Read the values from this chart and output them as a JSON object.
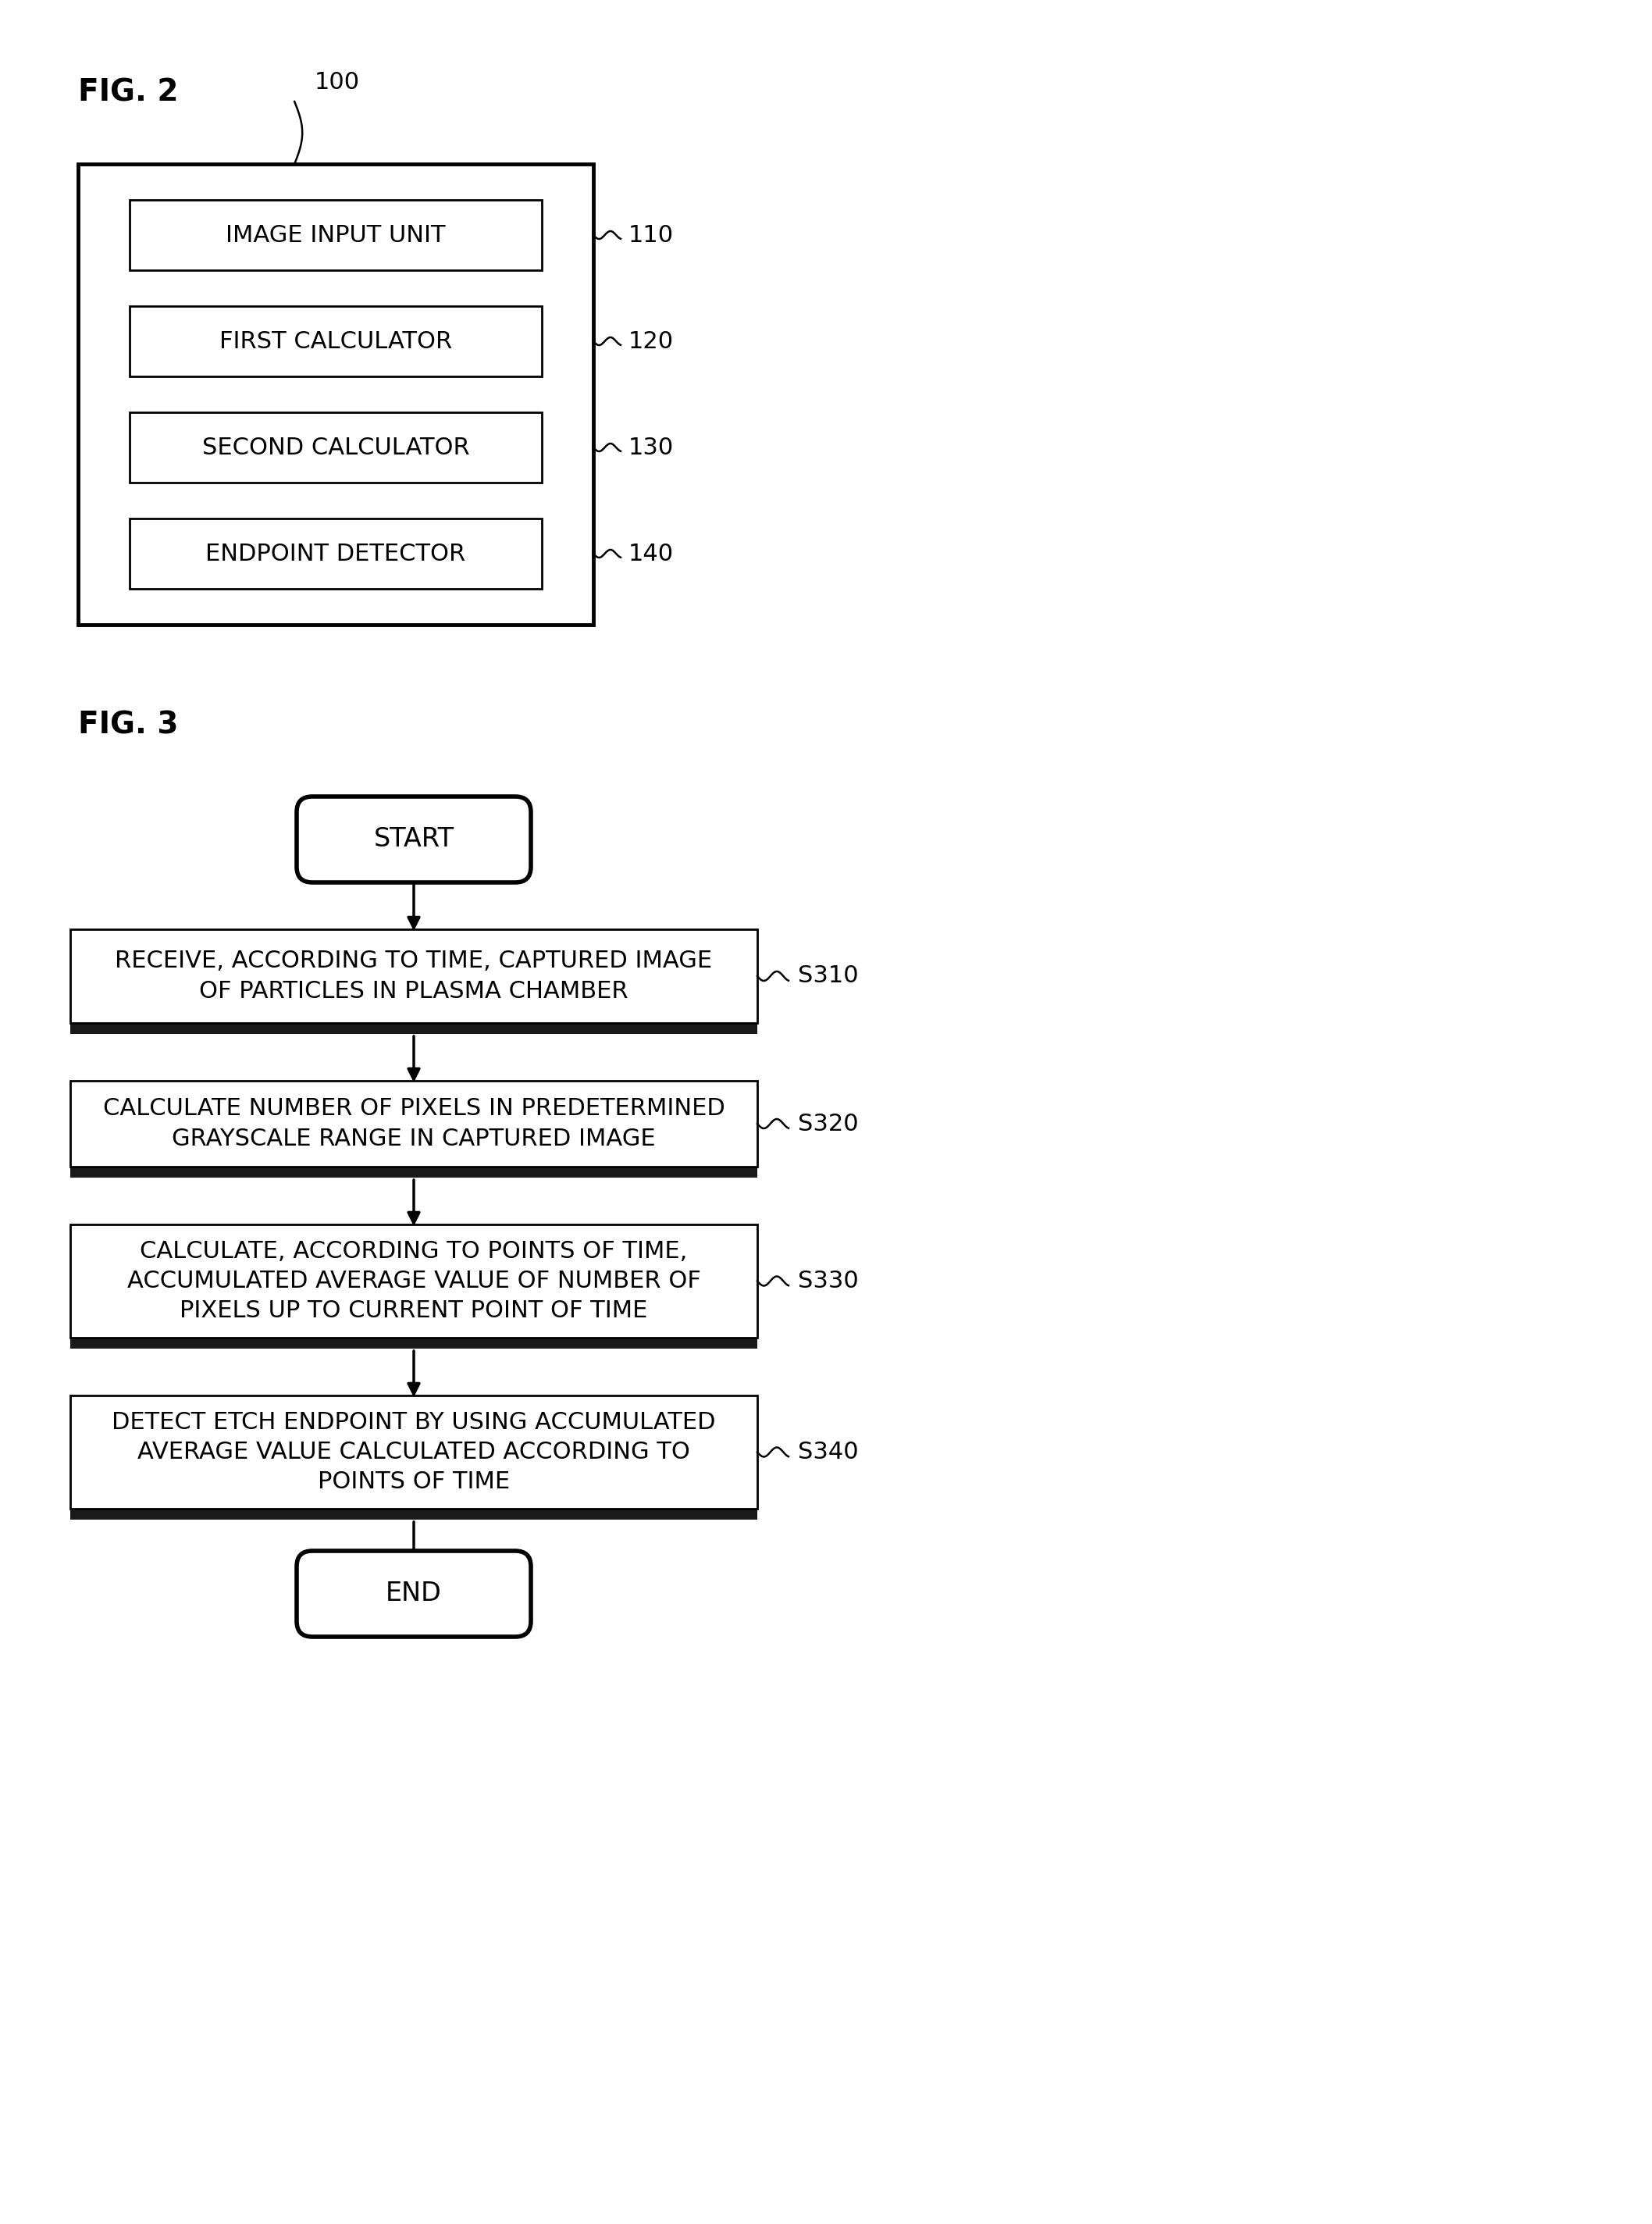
{
  "fig2_label": "FIG. 2",
  "fig3_label": "FIG. 3",
  "fig2_blocks": [
    {
      "label": "IMAGE INPUT UNIT",
      "ref": "110"
    },
    {
      "label": "FIRST CALCULATOR",
      "ref": "120"
    },
    {
      "label": "SECOND CALCULATOR",
      "ref": "130"
    },
    {
      "label": "ENDPOINT DETECTOR",
      "ref": "140"
    }
  ],
  "fig2_top_ref": "100",
  "fig3_blocks": [
    {
      "label": "RECEIVE, ACCORDING TO TIME, CAPTURED IMAGE\nOF PARTICLES IN PLASMA CHAMBER",
      "ref": "S310"
    },
    {
      "label": "CALCULATE NUMBER OF PIXELS IN PREDETERMINED\nGRAYSCALE RANGE IN CAPTURED IMAGE",
      "ref": "S320"
    },
    {
      "label": "CALCULATE, ACCORDING TO POINTS OF TIME,\nACCUMULATED AVERAGE VALUE OF NUMBER OF\nPIXELS UP TO CURRENT POINT OF TIME",
      "ref": "S330"
    },
    {
      "label": "DETECT ETCH ENDPOINT BY USING ACCUMULATED\nAVERAGE VALUE CALCULATED ACCORDING TO\nPOINTS OF TIME",
      "ref": "S340"
    }
  ],
  "fig3_start_label": "START",
  "fig3_end_label": "END",
  "background_color": "#ffffff",
  "box_edge_color": "#000000",
  "text_color": "#000000"
}
